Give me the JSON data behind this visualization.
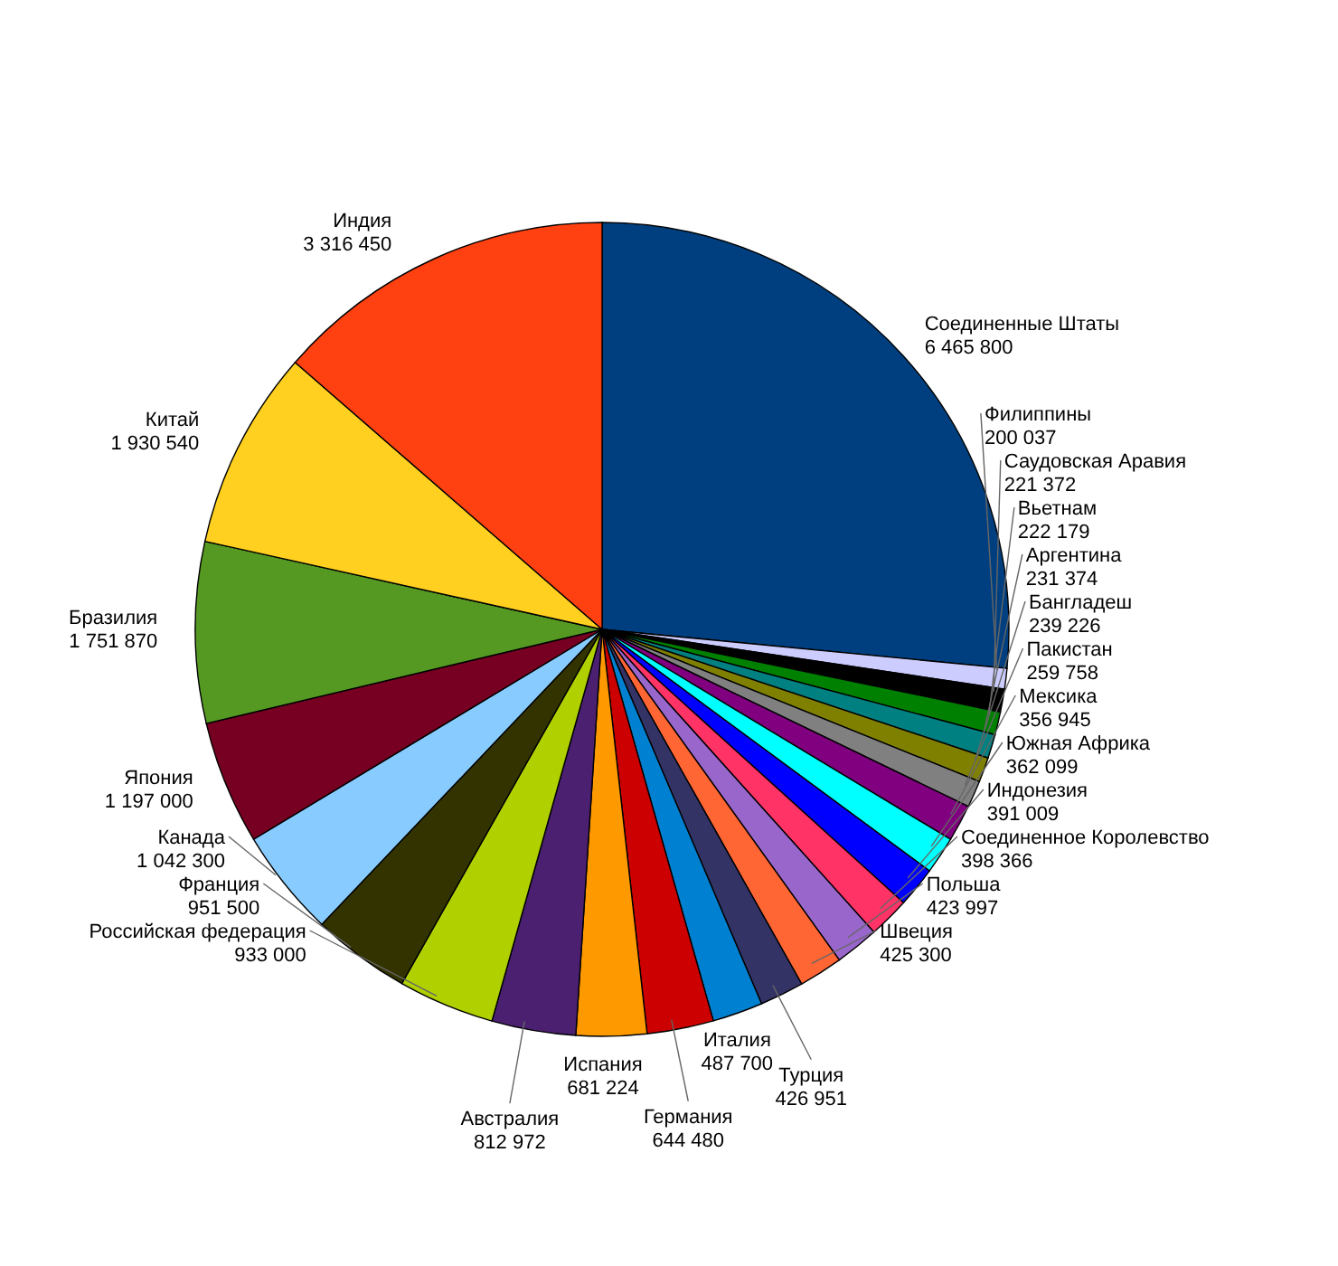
{
  "chart_data": {
    "type": "pie",
    "data_labels": true,
    "categories": [
      "Соединенные Штаты",
      "Филиппины",
      "Саудовская Аравия",
      "Вьетнам",
      "Аргентина",
      "Бангладеш",
      "Пакистан",
      "Мексика",
      "Южная Африка",
      "Индонезия",
      "Соединенное Королевство",
      "Польша",
      "Швеция",
      "Турция",
      "Италия",
      "Германия",
      "Испания",
      "Австралия",
      "Российская федерация",
      "Франция",
      "Канада",
      "Япония",
      "Бразилия",
      "Китай",
      "Индия"
    ],
    "values": [
      6465800,
      200037,
      221372,
      222179,
      231374,
      239226,
      259758,
      356945,
      362099,
      391009,
      398366,
      423997,
      425300,
      426951,
      487700,
      644480,
      681224,
      812972,
      933000,
      951500,
      1042300,
      1197000,
      1751870,
      1930540,
      3316450
    ],
    "colors": [
      "#003f7f",
      "#ccccff",
      "#000000",
      "#008000",
      "#008080",
      "#808000",
      "#808080",
      "#800080",
      "#00ffff",
      "#0000ff",
      "#ff3366",
      "#9966cc",
      "#ff6633",
      "#333366",
      "#0080d0",
      "#cc0000",
      "#ff9900",
      "#4b2070",
      "#b0d000",
      "#333300",
      "#88ccff",
      "#770022",
      "#559922",
      "#ffd020",
      "#ff4010"
    ]
  }
}
